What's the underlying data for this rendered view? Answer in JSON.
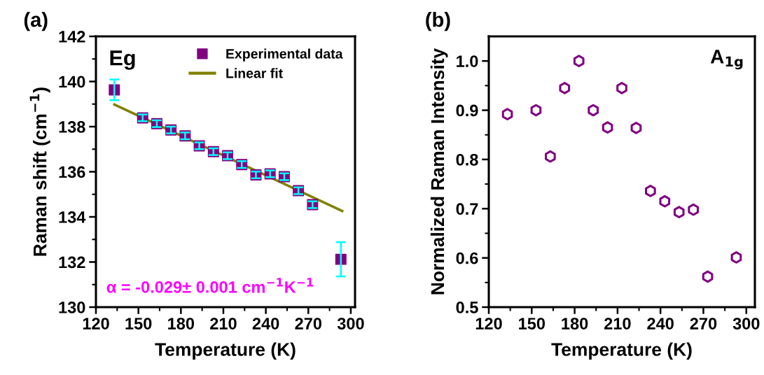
{
  "chart_data": [
    {
      "type": "scatter",
      "title": "(a)",
      "xlabel": "Temperature (K)",
      "ylabel": "Raman shift (cm$^{−1}$)",
      "x": [
        133,
        153,
        163,
        173,
        183,
        193,
        203,
        213,
        223,
        233,
        243,
        253,
        263,
        273,
        293
      ],
      "series": [
        {
          "name": "Experimental data",
          "marker": "square",
          "color": "#800080",
          "values": [
            139.63,
            138.39,
            138.13,
            137.85,
            137.59,
            137.15,
            136.89,
            136.71,
            136.32,
            135.86,
            135.91,
            135.78,
            135.16,
            134.54,
            132.12
          ],
          "errors": [
            0.46,
            0.15,
            0.15,
            0.15,
            0.15,
            0.15,
            0.15,
            0.15,
            0.15,
            0.15,
            0.15,
            0.15,
            0.15,
            0.15,
            0.76
          ]
        },
        {
          "name": "Linear fit",
          "type": "line",
          "marker": "none",
          "color": "#808000",
          "x": [
            133,
            294
          ],
          "values": [
            138.98,
            134.26
          ]
        }
      ],
      "annotations": [
        "Eg",
        "α = -0.029± 0.001 cm$^{−1}$K$^{−1}$"
      ],
      "xlim": [
        120,
        303
      ],
      "xticks": [
        120,
        150,
        180,
        210,
        240,
        270,
        300
      ],
      "ylim": [
        130,
        142
      ],
      "yticks": [
        130,
        132,
        134,
        136,
        138,
        140,
        142
      ],
      "grid": false,
      "legend": "top right"
    },
    {
      "type": "scatter",
      "title": "(b)",
      "xlabel": "Temperature (K)",
      "ylabel": "Normalized Raman Intensity",
      "x": [
        133,
        153,
        163,
        173,
        183,
        193,
        203,
        213,
        223,
        233,
        243,
        253,
        263,
        273,
        293
      ],
      "series": [
        {
          "color": "#800080",
          "values": [
            0.892,
            0.9,
            0.806,
            0.945,
            1.0,
            0.9,
            0.865,
            0.945,
            0.864,
            0.736,
            0.715,
            0.693,
            0.698,
            0.562,
            0.601
          ]
        }
      ],
      "annotations": [
        "A$_{1g}$"
      ],
      "xlim": [
        120,
        306
      ],
      "xticks": [
        120,
        150,
        180,
        210,
        240,
        270,
        300
      ],
      "ylim": [
        0.5,
        1.05
      ],
      "yticks": [
        {
          "value": 0.5,
          "label": "0.5"
        },
        {
          "value": 0.6,
          "label": "0.6"
        },
        {
          "value": 0.7,
          "label": "0.7"
        },
        {
          "value": 0.8,
          "label": "0.8"
        },
        {
          "value": 0.9,
          "label": "0.9"
        },
        {
          "value": 1.0,
          "label": "1.0"
        }
      ],
      "grid": false,
      "legend": false
    }
  ]
}
